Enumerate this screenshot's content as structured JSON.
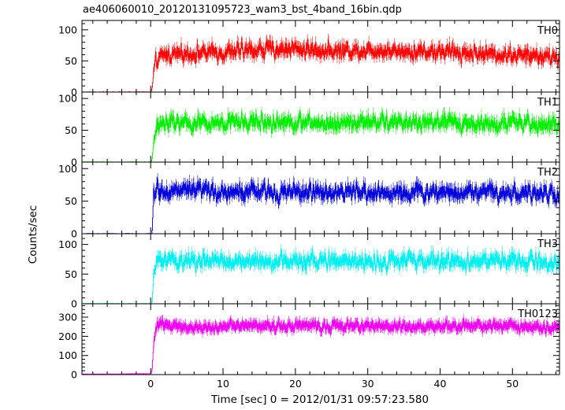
{
  "title": "ae406060010_20120131095723_wam3_bst_4band_16bin.qdp",
  "chart_data": {
    "type": "line",
    "title": "ae406060010_20120131095723_wam3_bst_4band_16bin.qdp",
    "xlabel": "Time [sec] 0 = 2012/01/31 09:57:23.580",
    "ylabel": "Counts/sec",
    "xlim": [
      -9.5,
      56.5
    ],
    "x_ticks": [
      0,
      10,
      20,
      30,
      40,
      50
    ],
    "x_tick_labels": [
      "0",
      "10",
      "20",
      "30",
      "40",
      "50"
    ],
    "burst_onset_sec": 0.4,
    "bin_width_sec": 0.0625,
    "panels": [
      {
        "name": "TH0",
        "color": "#ff0000",
        "ylim": [
          0,
          115
        ],
        "y_ticks": [
          0,
          50,
          100
        ],
        "y_tick_labels": [
          "0",
          "50",
          "100"
        ],
        "x": [
          -9.5,
          -5,
          0,
          0.2,
          0.4,
          0.8,
          2,
          5,
          10,
          15,
          20,
          25,
          30,
          35,
          40,
          45,
          50,
          56
        ],
        "y": [
          0,
          0,
          0,
          5,
          30,
          50,
          60,
          62,
          64,
          68,
          70,
          66,
          68,
          66,
          65,
          62,
          60,
          55
        ],
        "noise_amplitude": 14
      },
      {
        "name": "TH1",
        "color": "#00ee00",
        "ylim": [
          0,
          110
        ],
        "y_ticks": [
          0,
          50,
          100
        ],
        "y_tick_labels": [
          "0",
          "50",
          "100"
        ],
        "x": [
          -9.5,
          -5,
          0,
          0.2,
          0.4,
          0.8,
          2,
          5,
          10,
          15,
          20,
          25,
          30,
          35,
          40,
          45,
          50,
          56
        ],
        "y": [
          0,
          0,
          0,
          3,
          30,
          55,
          62,
          60,
          62,
          63,
          62,
          60,
          63,
          62,
          62,
          60,
          61,
          58
        ],
        "noise_amplitude": 14
      },
      {
        "name": "TH2",
        "color": "#0000dd",
        "ylim": [
          0,
          110
        ],
        "y_ticks": [
          0,
          50,
          100
        ],
        "y_tick_labels": [
          "0",
          "50",
          "100"
        ],
        "x": [
          -9.5,
          -5,
          0,
          0.2,
          0.4,
          0.8,
          2,
          5,
          10,
          15,
          20,
          25,
          30,
          35,
          40,
          45,
          50,
          56
        ],
        "y": [
          0,
          0,
          0,
          0,
          60,
          68,
          66,
          65,
          64,
          64,
          63,
          64,
          63,
          63,
          64,
          65,
          63,
          60
        ],
        "noise_amplitude": 14
      },
      {
        "name": "TH3",
        "color": "#00eeee",
        "ylim": [
          0,
          118
        ],
        "y_ticks": [
          0,
          50,
          100
        ],
        "y_tick_labels": [
          "0",
          "50",
          "100"
        ],
        "x": [
          -9.5,
          -5,
          0,
          0.2,
          0.4,
          0.8,
          2,
          5,
          10,
          15,
          20,
          25,
          30,
          35,
          40,
          45,
          50,
          56
        ],
        "y": [
          0,
          0,
          0,
          0,
          45,
          70,
          72,
          72,
          71,
          72,
          71,
          72,
          71,
          72,
          71,
          72,
          71,
          68
        ],
        "noise_amplitude": 15
      },
      {
        "name": "TH0123",
        "color": "#ee00ee",
        "ylim": [
          0,
          370
        ],
        "y_ticks": [
          0,
          100,
          200,
          300
        ],
        "y_tick_labels": [
          "0",
          "100",
          "200",
          "300"
        ],
        "x": [
          -9.5,
          -5,
          0,
          0.2,
          0.4,
          0.8,
          2,
          5,
          10,
          15,
          20,
          25,
          30,
          35,
          40,
          45,
          50,
          56
        ],
        "y": [
          3,
          3,
          5,
          20,
          150,
          260,
          265,
          245,
          250,
          255,
          255,
          252,
          255,
          250,
          250,
          255,
          255,
          245
        ],
        "noise_amplitude": 28
      }
    ]
  }
}
